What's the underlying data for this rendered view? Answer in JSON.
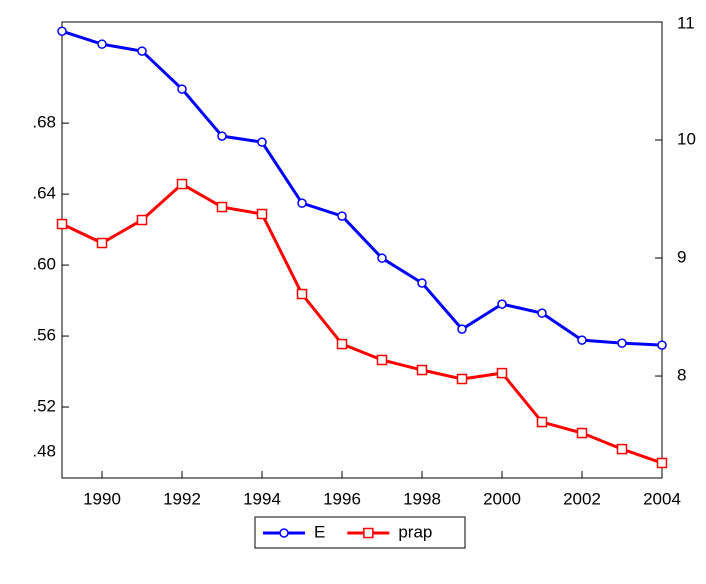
{
  "chart_data": {
    "type": "line",
    "x": [
      1989,
      1990,
      1991,
      1992,
      1993,
      1994,
      1995,
      1996,
      1997,
      1998,
      1999,
      2000,
      2001,
      2002,
      2003,
      2004
    ],
    "series": [
      {
        "name": "E",
        "color": "#0000ff",
        "marker": "circle",
        "axis": "y",
        "values": [
          0.7318,
          0.7245,
          0.7206,
          0.6992,
          0.6727,
          0.6693,
          0.6349,
          0.6276,
          0.6039,
          0.5899,
          0.5639,
          0.578,
          0.5729,
          0.5577,
          0.556,
          0.5549
        ]
      },
      {
        "name": "prap",
        "color": "#ff0000",
        "marker": "square",
        "axis": "y2",
        "values": [
          9.288,
          9.127,
          9.322,
          9.627,
          9.432,
          9.373,
          8.695,
          8.271,
          8.136,
          8.051,
          7.975,
          8.025,
          7.61,
          7.517,
          7.381,
          7.263
        ]
      }
    ],
    "xlim": [
      1989,
      2004
    ],
    "xticks": [
      1990,
      1992,
      1994,
      1996,
      1998,
      2000,
      2002,
      2004
    ],
    "ylim": [
      0.48,
      0.737
    ],
    "yticks": [
      {
        "value": 0.48,
        "label": ".48"
      },
      {
        "value": 0.52,
        "label": ".52"
      },
      {
        "value": 0.56,
        "label": ".56"
      },
      {
        "value": 0.6,
        "label": ".60"
      },
      {
        "value": 0.64,
        "label": ".64"
      },
      {
        "value": 0.68,
        "label": ".68"
      }
    ],
    "y2lim": [
      7.136,
      11
    ],
    "y2ticks": [
      8,
      9,
      10,
      11
    ],
    "legend": "bottom"
  }
}
